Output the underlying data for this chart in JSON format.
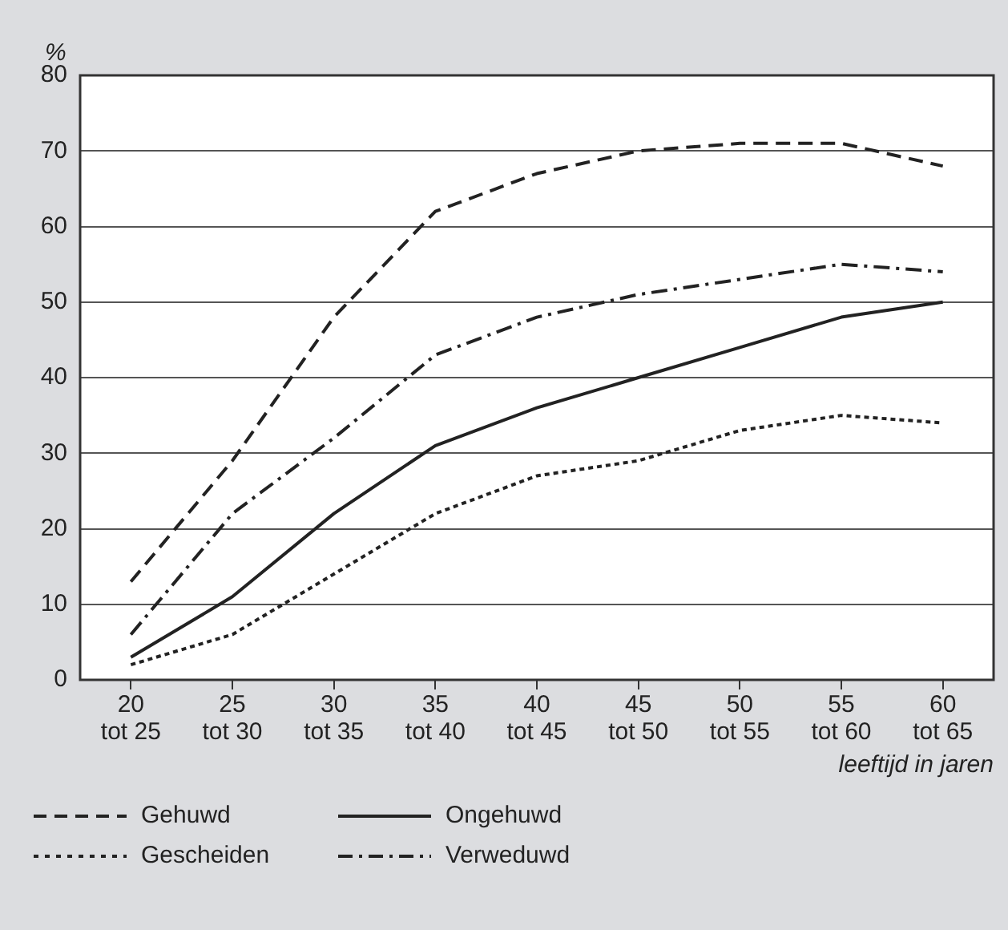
{
  "chart_data": {
    "type": "line",
    "ylabel": "%",
    "xlabel": "leeftijd in jaren",
    "categories": [
      "20\ntot 25",
      "25\ntot 30",
      "30\ntot 35",
      "35\ntot 40",
      "40\ntot 45",
      "45\ntot 50",
      "50\ntot 55",
      "55\ntot 60",
      "60\ntot 65"
    ],
    "series": [
      {
        "name": "Gehuwd",
        "color": "#222222",
        "line_style": "dashed",
        "values": [
          13,
          29,
          48,
          62,
          67,
          70,
          71,
          71,
          68
        ]
      },
      {
        "name": "Ongehuwd",
        "color": "#222222",
        "line_style": "solid",
        "values": [
          3,
          11,
          22,
          31,
          36,
          40,
          44,
          48,
          50
        ]
      },
      {
        "name": "Gescheiden",
        "color": "#222222",
        "line_style": "dotted",
        "values": [
          2,
          6,
          14,
          22,
          27,
          29,
          33,
          35,
          34
        ]
      },
      {
        "name": "Verweduwd",
        "color": "#222222",
        "line_style": "dashdot",
        "values": [
          6,
          22,
          32,
          43,
          48,
          51,
          53,
          55,
          54
        ]
      }
    ],
    "ylim": [
      0,
      80
    ],
    "yticks": [
      0,
      10,
      20,
      30,
      40,
      50,
      60,
      70,
      80
    ],
    "grid": "y",
    "legend": "bottom left",
    "marker": "none"
  }
}
